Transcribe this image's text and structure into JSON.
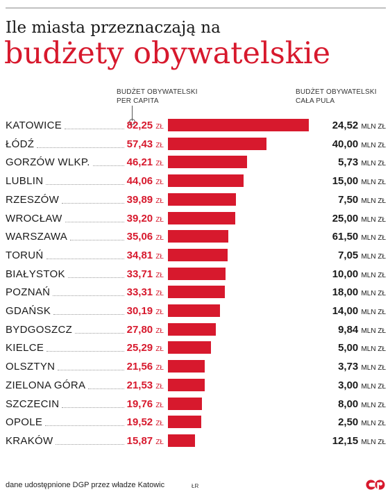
{
  "title_line1": "Ile miasta przeznaczają na",
  "title_line2": "budżety obywatelskie",
  "headers": {
    "per_capita": [
      "BUDŻET OBYWATELSKI",
      "PER CAPITA"
    ],
    "total": [
      "BUDŻET OBYWATELSKI",
      "CAŁA PULA"
    ]
  },
  "units": {
    "per_capita": "ZŁ",
    "total": "MLN ZŁ"
  },
  "footer": "dane udostępnione DGP przez władze Katowic",
  "credit": "ŁR",
  "colors": {
    "accent": "#d7192d",
    "text": "#1a1a1a"
  },
  "chart_data": {
    "type": "bar",
    "orientation": "horizontal",
    "title": "Ile miasta przeznaczają na budżety obywatelskie",
    "categories": [
      "KATOWICE",
      "ŁÓDŹ",
      "GORZÓW WLKP.",
      "LUBLIN",
      "RZESZÓW",
      "WROCŁAW",
      "WARSZAWA",
      "TORUŃ",
      "BIAŁYSTOK",
      "POZNAŃ",
      "GDAŃSK",
      "BYDGOSZCZ",
      "KIELCE",
      "OLSZTYN",
      "ZIELONA GÓRA",
      "SZCZECIN",
      "OPOLE",
      "KRAKÓW"
    ],
    "series": [
      {
        "name": "BUDŻET OBYWATELSKI PER CAPITA",
        "values": [
          "82,25",
          "57,43",
          "46,21",
          "44,06",
          "39,89",
          "39,20",
          "35,06",
          "34,81",
          "33,71",
          "33,31",
          "30,19",
          "27,80",
          "25,29",
          "21,56",
          "21,53",
          "19,76",
          "19,52",
          "15,87"
        ]
      },
      {
        "name": "BUDŻET OBYWATELSKI CAŁA PULA",
        "values": [
          "24,52",
          "40,00",
          "5,73",
          "15,00",
          "7,50",
          "25,00",
          "61,50",
          "7,05",
          "10,00",
          "18,00",
          "14,00",
          "9,84",
          "5,00",
          "3,73",
          "3,00",
          "8,00",
          "2,50",
          "12,15"
        ]
      }
    ]
  }
}
